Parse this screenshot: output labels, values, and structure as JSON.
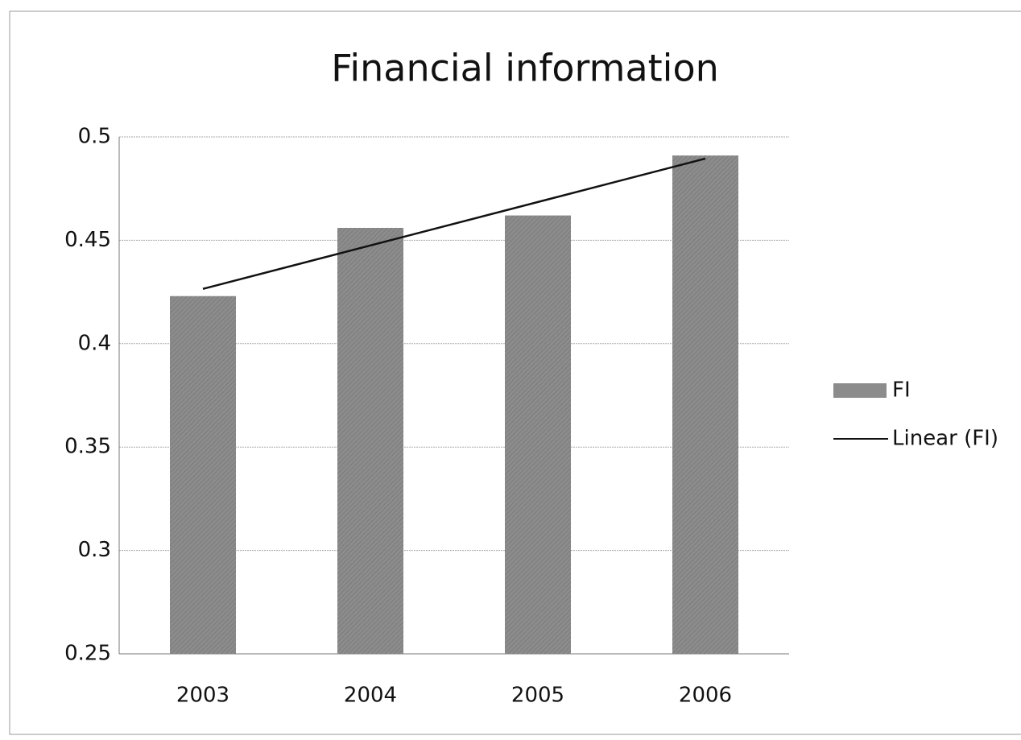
{
  "chart_data": {
    "type": "bar",
    "title": "Financial information",
    "categories": [
      "2003",
      "2004",
      "2005",
      "2006"
    ],
    "series": [
      {
        "name": "FI",
        "type": "bar",
        "color": "#8c8c8c",
        "values": [
          0.423,
          0.456,
          0.462,
          0.491
        ]
      },
      {
        "name": "Linear (FI)",
        "type": "line",
        "color": "#111111",
        "values": [
          0.4265,
          0.4475,
          0.4685,
          0.4895
        ]
      }
    ],
    "ylim": [
      0.25,
      0.5
    ],
    "yticks": [
      0.25,
      0.3,
      0.35,
      0.4,
      0.45,
      0.5
    ],
    "grid": true,
    "legend": "right"
  }
}
